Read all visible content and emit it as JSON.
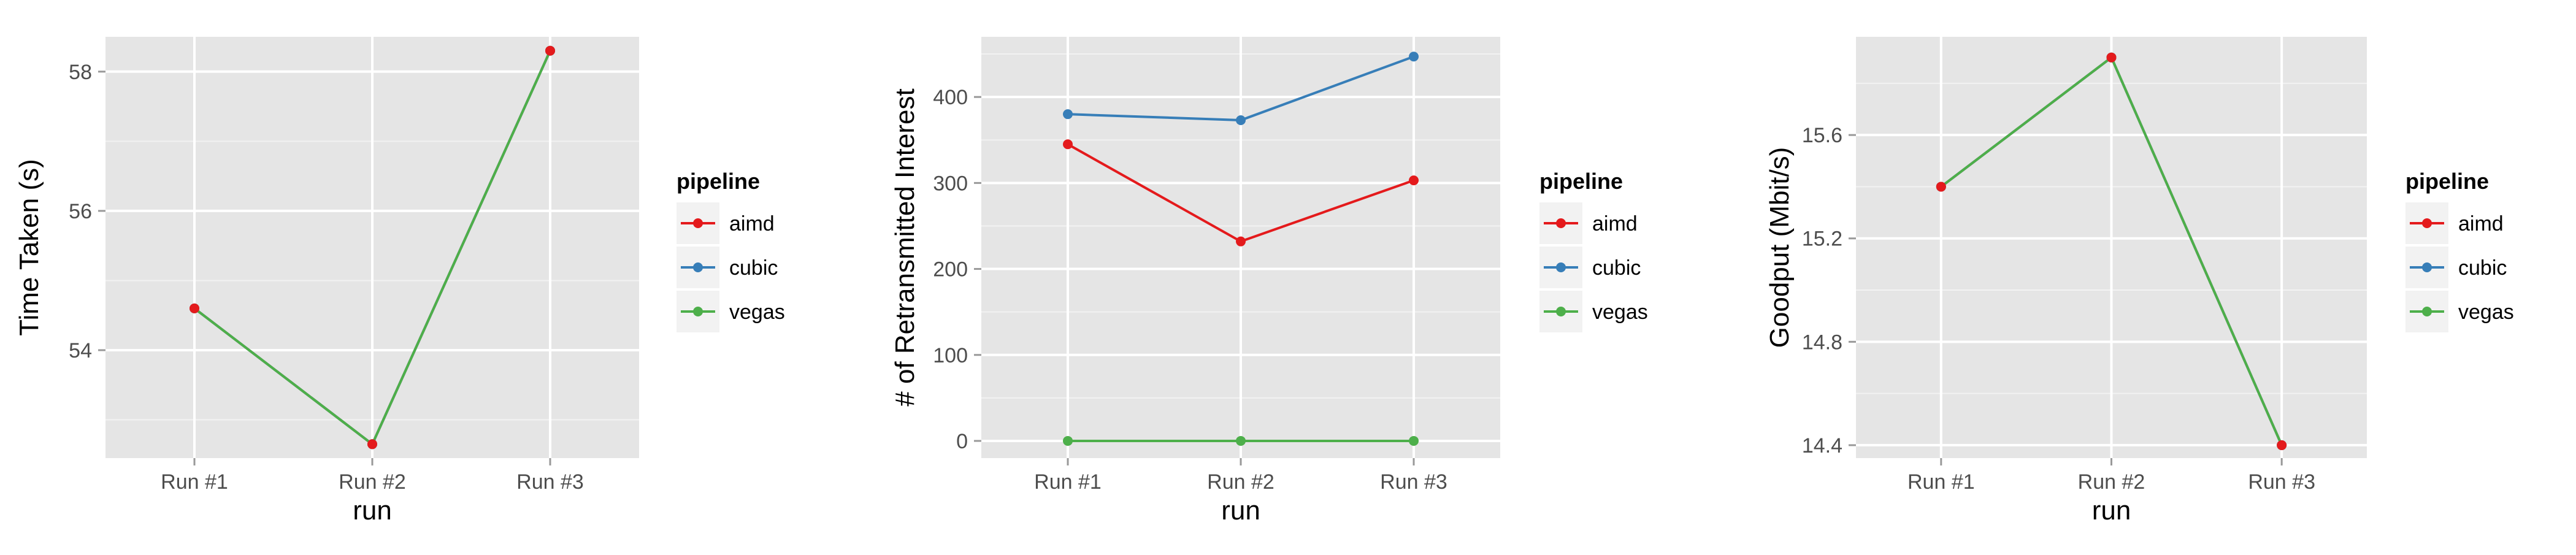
{
  "chart_data": [
    {
      "type": "line",
      "categories": [
        "Run #1",
        "Run #2",
        "Run #3"
      ],
      "xlabel": "run",
      "ylabel": "Time Taken (s)",
      "ylim": [
        52.45,
        58.5
      ],
      "yticks": [
        54,
        56,
        58
      ],
      "grid": true,
      "legend": {
        "title": "pipeline",
        "entries": [
          "aimd",
          "cubic",
          "vegas"
        ],
        "placement": "right"
      },
      "series": [
        {
          "name": "aimd",
          "values": [
            54.6,
            52.65,
            58.3
          ]
        },
        {
          "name": "cubic",
          "values": [
            54.6,
            52.65,
            58.3
          ]
        },
        {
          "name": "vegas",
          "values": [
            54.6,
            52.65,
            58.3
          ]
        }
      ]
    },
    {
      "type": "line",
      "categories": [
        "Run #1",
        "Run #2",
        "Run #3"
      ],
      "xlabel": "run",
      "ylabel": "# of Retransmitted Interest",
      "ylim": [
        -20,
        470
      ],
      "yticks": [
        0,
        100,
        200,
        300,
        400
      ],
      "grid": true,
      "legend": {
        "title": "pipeline",
        "entries": [
          "aimd",
          "cubic",
          "vegas"
        ],
        "placement": "right"
      },
      "series": [
        {
          "name": "aimd",
          "values": [
            345,
            232,
            303
          ]
        },
        {
          "name": "cubic",
          "values": [
            380,
            373,
            447
          ]
        },
        {
          "name": "vegas",
          "values": [
            0,
            0,
            0
          ]
        }
      ]
    },
    {
      "type": "line",
      "categories": [
        "Run #1",
        "Run #2",
        "Run #3"
      ],
      "xlabel": "run",
      "ylabel": "Goodput (Mbit/s)",
      "ylim": [
        14.35,
        15.98
      ],
      "yticks": [
        14.4,
        14.8,
        15.2,
        15.6
      ],
      "grid": true,
      "legend": {
        "title": "pipeline",
        "entries": [
          "aimd",
          "cubic",
          "vegas"
        ],
        "placement": "right"
      },
      "series": [
        {
          "name": "aimd",
          "values": [
            15.4,
            15.9,
            14.4
          ]
        },
        {
          "name": "cubic",
          "values": [
            15.4,
            15.9,
            14.4
          ]
        },
        {
          "name": "vegas",
          "values": [
            15.4,
            15.9,
            14.4
          ]
        }
      ]
    }
  ],
  "colors": {
    "aimd": "#E41A1C",
    "cubic": "#377EB8",
    "vegas": "#4DAF4A",
    "panel": "#E5E5E5",
    "grid": "#FFFFFF",
    "legend_key": "#F2F2F2",
    "tick_text": "#4D4D4D",
    "tick_mark": "#999999",
    "text": "#000000"
  }
}
